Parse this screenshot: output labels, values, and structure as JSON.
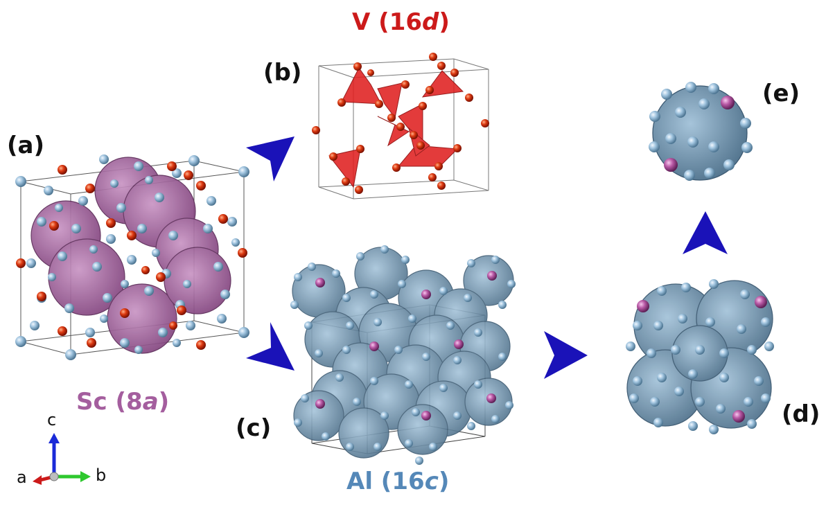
{
  "panels": {
    "a": "(a)",
    "b": "(b)",
    "c": "(c)",
    "d": "(d)",
    "e": "(e)"
  },
  "titles": {
    "v": {
      "element": "V",
      "site_num": "16",
      "site_letter": "d",
      "color": "#cc1a1a"
    },
    "sc": {
      "element": "Sc",
      "site_num": "8",
      "site_letter": "a",
      "color": "#a45e9e"
    },
    "al": {
      "element": "Al",
      "site_num": "16",
      "site_letter": "c",
      "color": "#5588b8"
    }
  },
  "axes": {
    "a": "a",
    "b": "b",
    "c": "c"
  },
  "colors": {
    "arrow": "#1a12b8",
    "v_atom": "#d42a0e",
    "al_atom": "#8fb8d8",
    "sc_atom": "#b0509a",
    "sc_poly": "#9a5a95",
    "al_poly": "#6e8ea8",
    "v_poly": "#e02020"
  }
}
